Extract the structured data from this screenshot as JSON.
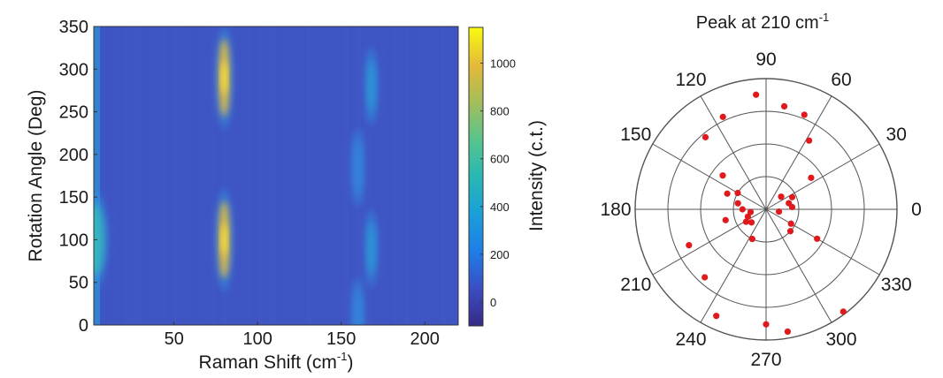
{
  "chart_data": [
    {
      "type": "heatmap",
      "xlabel": "Raman Shift (cm",
      "xlabel_sup": "-1",
      "xlabel_tail": ")",
      "ylabel": "Rotation Angle (Deg)",
      "xlim": [
        2,
        220
      ],
      "ylim": [
        0,
        350
      ],
      "x_ticks": [
        "50",
        "100",
        "150",
        "200"
      ],
      "y_ticks": [
        "0",
        "50",
        "100",
        "150",
        "200",
        "250",
        "300",
        "350"
      ],
      "colormap": "parula",
      "background_color": "#3f55c4",
      "bright_bands": [
        {
          "x": 80,
          "angle": 290,
          "intensity": 1000
        },
        {
          "x": 80,
          "angle": 100,
          "intensity": 1000
        },
        {
          "x": 168,
          "angle": 280,
          "intensity": 350
        },
        {
          "x": 168,
          "angle": 90,
          "intensity": 350
        },
        {
          "x": 160,
          "angle": 185,
          "intensity": 250
        },
        {
          "x": 160,
          "angle": 10,
          "intensity": 250
        },
        {
          "x": 3,
          "angle": 100,
          "intensity": 450
        }
      ],
      "colorbar": {
        "label": "Intensity (c.t.)",
        "range": [
          -100,
          1150
        ],
        "ticks": [
          "0",
          "200",
          "400",
          "600",
          "800",
          "1000"
        ]
      }
    },
    {
      "type": "scatter",
      "coordinate_system": "polar",
      "title": "Peak at 210 cm",
      "title_sup": "-1",
      "angle_ticks": [
        "0",
        "30",
        "60",
        "90",
        "120",
        "150",
        "180",
        "210",
        "240",
        "270",
        "300",
        "330"
      ],
      "r_max": 1.0,
      "point_color": "#e0191c",
      "points": [
        {
          "angle": 95,
          "r": 0.88
        },
        {
          "angle": 80,
          "r": 0.8
        },
        {
          "angle": 68,
          "r": 0.78
        },
        {
          "angle": 115,
          "r": 0.78
        },
        {
          "angle": 130,
          "r": 0.72
        },
        {
          "angle": 58,
          "r": 0.62
        },
        {
          "angle": 142,
          "r": 0.42
        },
        {
          "angle": 158,
          "r": 0.32
        },
        {
          "angle": 168,
          "r": 0.22
        },
        {
          "angle": 180,
          "r": 0.18
        },
        {
          "angle": 190,
          "r": 0.12
        },
        {
          "angle": 202,
          "r": 0.15
        },
        {
          "angle": 150,
          "r": 0.25
        },
        {
          "angle": 212,
          "r": 0.18
        },
        {
          "angle": 222,
          "r": 0.15
        },
        {
          "angle": 35,
          "r": 0.42
        },
        {
          "angle": 25,
          "r": 0.22
        },
        {
          "angle": 15,
          "r": 0.18
        },
        {
          "angle": 5,
          "r": 0.2
        },
        {
          "angle": 350,
          "r": 0.1
        },
        {
          "angle": 40,
          "r": 0.15
        },
        {
          "angle": 330,
          "r": 0.22
        },
        {
          "angle": 318,
          "r": 0.25
        },
        {
          "angle": 330,
          "r": 0.45
        },
        {
          "angle": 245,
          "r": 0.25
        },
        {
          "angle": 205,
          "r": 0.65
        },
        {
          "angle": 228,
          "r": 0.7
        },
        {
          "angle": 245,
          "r": 0.9
        },
        {
          "angle": 270,
          "r": 0.88
        },
        {
          "angle": 280,
          "r": 0.95
        },
        {
          "angle": 307,
          "r": 0.98
        },
        {
          "angle": 195,
          "r": 0.32
        }
      ]
    }
  ]
}
